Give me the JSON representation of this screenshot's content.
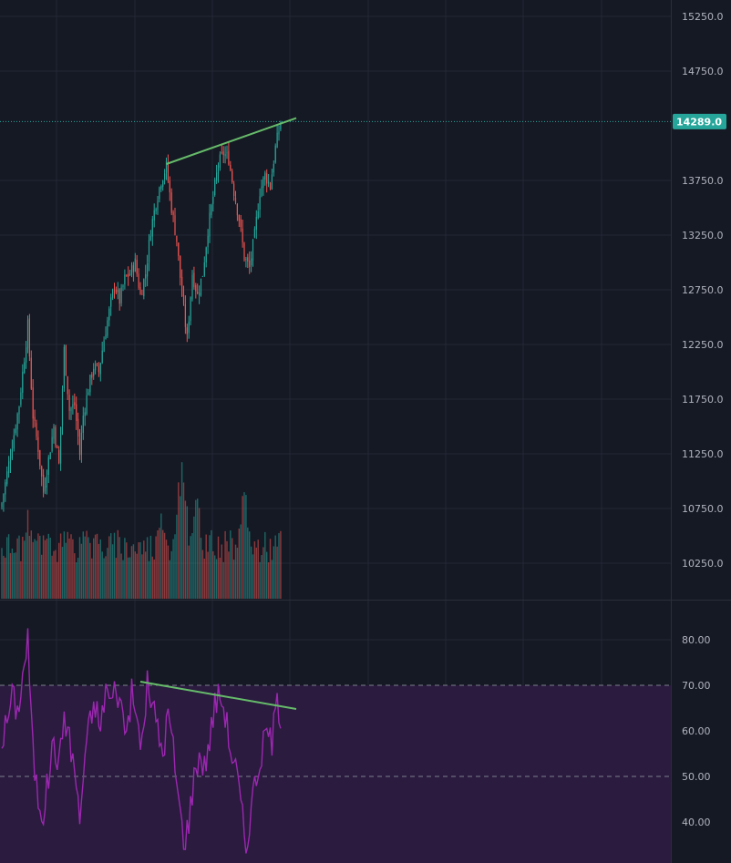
{
  "colors": {
    "background": "#151924",
    "grid": "#232734",
    "up": "#26a69a",
    "down": "#ef5350",
    "trendline": "#66bb6a",
    "rsi_line": "#9c27b0",
    "rsi_band": "#2a1b3f",
    "price_badge": "#26a69a",
    "price_line": "#26a69a",
    "axis_text": "#b2b5be"
  },
  "chart_data": [
    {
      "type": "candlestick",
      "name": "price",
      "y_ticks": [
        "15250.0",
        "14750.0",
        "14289.0",
        "13750.0",
        "13250.0",
        "12750.0",
        "12250.0",
        "11750.0",
        "11250.0",
        "10750.0",
        "10250.0"
      ],
      "y_tick_values": [
        15250,
        14750,
        13750,
        13250,
        12750,
        12250,
        11750,
        11250,
        10750,
        10250
      ],
      "ylim": [
        10000,
        15400
      ],
      "last_price": 14289.0,
      "last_price_label": "14289.0",
      "bar_count": 162,
      "closes_path": [
        [
          0,
          10800
        ],
        [
          5,
          11250
        ],
        [
          10,
          11700
        ],
        [
          15,
          12420
        ],
        [
          18,
          11600
        ],
        [
          21,
          11300
        ],
        [
          24,
          10900
        ],
        [
          27,
          11200
        ],
        [
          30,
          11500
        ],
        [
          33,
          11150
        ],
        [
          36,
          12200
        ],
        [
          39,
          11650
        ],
        [
          42,
          11700
        ],
        [
          45,
          11250
        ],
        [
          47,
          11600
        ],
        [
          50,
          11850
        ],
        [
          53,
          12050
        ],
        [
          56,
          12000
        ],
        [
          59,
          12300
        ],
        [
          62,
          12550
        ],
        [
          65,
          12800
        ],
        [
          68,
          12650
        ],
        [
          71,
          12850
        ],
        [
          74,
          12900
        ],
        [
          77,
          13000
        ],
        [
          80,
          12700
        ],
        [
          83,
          12900
        ],
        [
          86,
          13300
        ],
        [
          89,
          13550
        ],
        [
          92,
          13750
        ],
        [
          95,
          13880
        ],
        [
          98,
          13500
        ],
        [
          101,
          13200
        ],
        [
          104,
          12700
        ],
        [
          107,
          12300
        ],
        [
          110,
          12900
        ],
        [
          113,
          12700
        ],
        [
          116,
          12900
        ],
        [
          119,
          13300
        ],
        [
          122,
          13600
        ],
        [
          125,
          13900
        ],
        [
          128,
          14000
        ],
        [
          131,
          13950
        ],
        [
          134,
          13650
        ],
        [
          137,
          13400
        ],
        [
          140,
          13050
        ],
        [
          143,
          12950
        ],
        [
          146,
          13250
        ],
        [
          149,
          13650
        ],
        [
          152,
          13800
        ],
        [
          155,
          13700
        ],
        [
          158,
          14050
        ],
        [
          161,
          14289
        ]
      ],
      "trendline": [
        [
          95,
          13900
        ],
        [
          170,
          14320
        ]
      ]
    },
    {
      "type": "bar",
      "name": "volume",
      "relative_range": [
        0,
        1
      ],
      "spikes": [
        [
          15,
          0.55
        ],
        [
          49,
          0.58
        ],
        [
          92,
          0.68
        ],
        [
          104,
          1.0
        ],
        [
          112,
          0.8
        ],
        [
          140,
          0.82
        ],
        [
          161,
          0.45
        ]
      ]
    },
    {
      "type": "line",
      "name": "rsi",
      "y_ticks": [
        "80.00",
        "70.00",
        "60.00",
        "50.00",
        "40.00"
      ],
      "y_tick_values": [
        80,
        70,
        60,
        50,
        40
      ],
      "ylim": [
        34,
        86
      ],
      "overbought": 70,
      "oversold": 50,
      "values_path": [
        [
          0,
          58
        ],
        [
          3,
          62
        ],
        [
          6,
          68
        ],
        [
          9,
          64
        ],
        [
          12,
          72
        ],
        [
          15,
          80
        ],
        [
          18,
          55
        ],
        [
          21,
          45
        ],
        [
          24,
          42
        ],
        [
          27,
          50
        ],
        [
          30,
          58
        ],
        [
          33,
          52
        ],
        [
          36,
          64
        ],
        [
          39,
          58
        ],
        [
          42,
          52
        ],
        [
          45,
          40
        ],
        [
          48,
          55
        ],
        [
          51,
          62
        ],
        [
          54,
          66
        ],
        [
          57,
          60
        ],
        [
          60,
          70
        ],
        [
          63,
          66
        ],
        [
          66,
          70
        ],
        [
          69,
          65
        ],
        [
          72,
          60
        ],
        [
          75,
          68
        ],
        [
          78,
          62
        ],
        [
          81,
          57
        ],
        [
          84,
          70
        ],
        [
          87,
          66
        ],
        [
          90,
          60
        ],
        [
          93,
          55
        ],
        [
          96,
          64
        ],
        [
          99,
          56
        ],
        [
          102,
          45
        ],
        [
          105,
          36
        ],
        [
          108,
          40
        ],
        [
          111,
          50
        ],
        [
          114,
          55
        ],
        [
          117,
          52
        ],
        [
          120,
          58
        ],
        [
          123,
          66
        ],
        [
          126,
          68
        ],
        [
          129,
          64
        ],
        [
          132,
          56
        ],
        [
          135,
          52
        ],
        [
          138,
          44
        ],
        [
          141,
          34
        ],
        [
          144,
          44
        ],
        [
          147,
          50
        ],
        [
          150,
          55
        ],
        [
          153,
          60
        ],
        [
          156,
          58
        ],
        [
          159,
          66
        ],
        [
          161,
          64
        ]
      ],
      "trendline": [
        [
          80,
          70.8
        ],
        [
          170,
          64.8
        ]
      ]
    }
  ]
}
